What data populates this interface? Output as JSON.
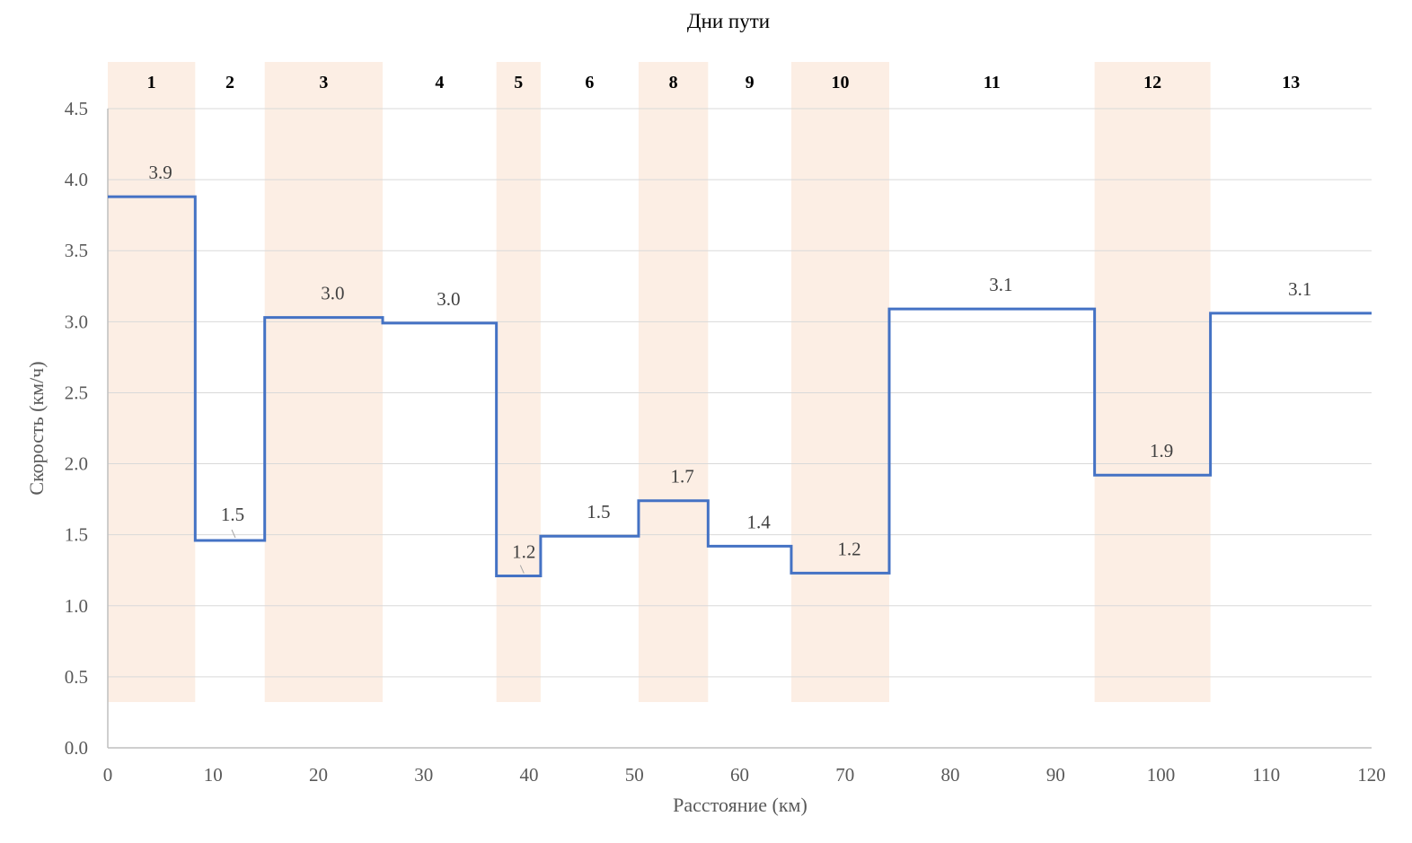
{
  "chart_data": {
    "type": "line",
    "step": true,
    "title": "Дни пути",
    "xlabel": "Расстояние (км)",
    "ylabel": "Скорость (км/ч)",
    "xlim": [
      0,
      120
    ],
    "ylim": [
      0,
      4.5
    ],
    "x_ticks": [
      "0",
      "10",
      "20",
      "30",
      "40",
      "50",
      "60",
      "70",
      "80",
      "90",
      "100",
      "110",
      "120"
    ],
    "y_ticks": [
      "0.0",
      "0.5",
      "1.0",
      "1.5",
      "2.0",
      "2.5",
      "3.0",
      "3.5",
      "4.0",
      "4.5"
    ],
    "grid": "horizontal",
    "series_color": "#4472C4",
    "band_color": "#FCEEE4",
    "days": [
      {
        "label": "1",
        "start": 0,
        "end": 8.3,
        "speed": 3.88,
        "speed_label": "3.9",
        "shaded": true
      },
      {
        "label": "2",
        "start": 8.3,
        "end": 14.9,
        "speed": 1.46,
        "speed_label": "1.5",
        "shaded": false
      },
      {
        "label": "3",
        "start": 14.9,
        "end": 26.1,
        "speed": 3.03,
        "speed_label": "3.0",
        "shaded": true
      },
      {
        "label": "4",
        "start": 26.1,
        "end": 36.9,
        "speed": 2.99,
        "speed_label": "3.0",
        "shaded": false
      },
      {
        "label": "5",
        "start": 36.9,
        "end": 41.1,
        "speed": 1.21,
        "speed_label": "1.2",
        "shaded": true
      },
      {
        "label": "6",
        "start": 41.1,
        "end": 50.4,
        "speed": 1.49,
        "speed_label": "1.5",
        "shaded": false
      },
      {
        "label": "8",
        "start": 50.4,
        "end": 57.0,
        "speed": 1.74,
        "speed_label": "1.7",
        "shaded": true
      },
      {
        "label": "9",
        "start": 57.0,
        "end": 64.9,
        "speed": 1.42,
        "speed_label": "1.4",
        "shaded": false
      },
      {
        "label": "10",
        "start": 64.9,
        "end": 74.2,
        "speed": 1.23,
        "speed_label": "1.2",
        "shaded": true
      },
      {
        "label": "11",
        "start": 74.2,
        "end": 93.7,
        "speed": 3.09,
        "speed_label": "3.1",
        "shaded": false
      },
      {
        "label": "12",
        "start": 93.7,
        "end": 104.7,
        "speed": 1.92,
        "speed_label": "1.9",
        "shaded": true
      },
      {
        "label": "13",
        "start": 104.7,
        "end": 120,
        "speed": 3.06,
        "speed_label": "3.1",
        "shaded": false
      }
    ]
  }
}
